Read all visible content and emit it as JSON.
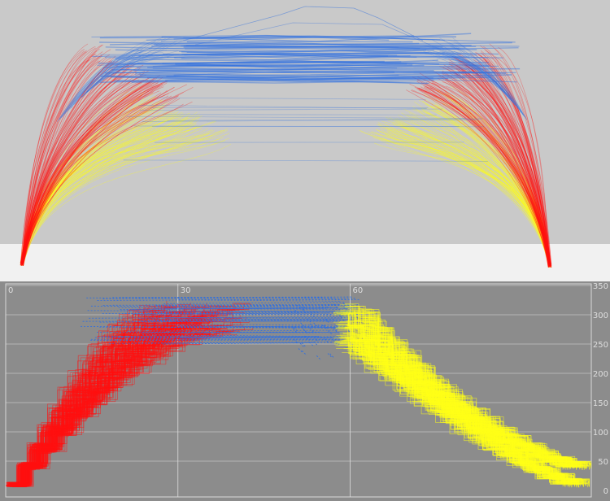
{
  "colors": {
    "climb": "#ff1010",
    "cruise": "#2f6fe0",
    "descent": "#ffff18",
    "scene_background": "#c9c9c9",
    "terrain": "#f1f1f1",
    "panel_background": "#8c8c8c",
    "panel_border": "#d8d8d8",
    "grid": "#dcdcdc",
    "tick_text": "#e2e2e2"
  },
  "chart_data": [
    {
      "type": "line",
      "title": "",
      "view": "3d-perspective",
      "series": [
        {
          "phase": "climb",
          "color": "#ff1010"
        },
        {
          "phase": "climb-blend",
          "color": "#ffff18"
        },
        {
          "phase": "cruise",
          "color": "#2f6fe0"
        },
        {
          "phase": "descent",
          "color": "#ff1010"
        },
        {
          "phase": "descent-blend",
          "color": "#ffff18"
        }
      ]
    },
    {
      "type": "line",
      "title": "",
      "xlabel": "",
      "ylabel": "",
      "xlim": [
        0,
        102
      ],
      "ylim": [
        0,
        350
      ],
      "x_ticks": [
        {
          "value": 0,
          "label": "0"
        },
        {
          "value": 30,
          "label": "30"
        },
        {
          "value": 60,
          "label": "60"
        }
      ],
      "y_ticks": [
        {
          "value": 0,
          "label": "0"
        },
        {
          "value": 50,
          "label": "50"
        },
        {
          "value": 100,
          "label": "100"
        },
        {
          "value": 150,
          "label": "150"
        },
        {
          "value": 200,
          "label": "200"
        },
        {
          "value": 250,
          "label": "250"
        },
        {
          "value": 300,
          "label": "300"
        },
        {
          "value": 350,
          "label": "350"
        }
      ],
      "grid": true,
      "series": [
        {
          "phase": "climb",
          "color": "#ff1010",
          "x": [
            0,
            3,
            7,
            12,
            18,
            25,
            30
          ],
          "y": [
            15,
            70,
            145,
            215,
            265,
            295,
            305
          ]
        },
        {
          "phase": "cruise",
          "color": "#2f6fe0",
          "x": [
            13,
            20,
            30,
            40,
            50,
            58
          ],
          "y": [
            325,
            330,
            330,
            328,
            325,
            320
          ]
        },
        {
          "phase": "descent",
          "color": "#ffff18",
          "x": [
            58,
            65,
            72,
            80,
            88,
            95,
            100
          ],
          "y": [
            310,
            260,
            200,
            140,
            90,
            45,
            15
          ]
        }
      ]
    }
  ]
}
